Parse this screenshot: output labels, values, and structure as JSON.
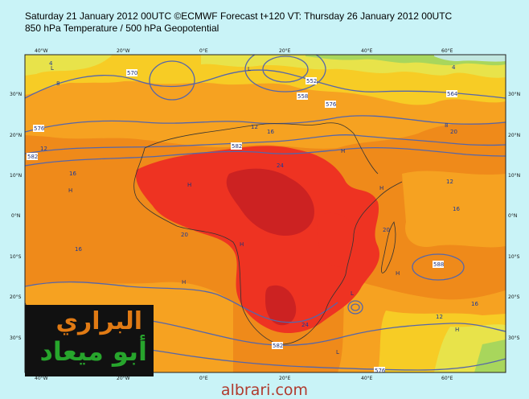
{
  "header": {
    "line1": "Saturday 21 January 2012 00UTC ©ECMWF Forecast t+120 VT: Thursday 26 January 2012 00UTC",
    "line2": "850 hPa Temperature / 500 hPa Geopotential"
  },
  "map": {
    "lon_top": [
      "40°W",
      "20°W",
      "0°E",
      "20°E",
      "40°E",
      "60°E"
    ],
    "lon_bottom": [
      "40°W",
      "20°W",
      "0°E",
      "20°E",
      "40°E",
      "60°E"
    ],
    "lat_left": [
      "30°N",
      "20°N",
      "10°N",
      "0°N",
      "10°S",
      "20°S",
      "30°S"
    ],
    "lat_right": [
      "30°N",
      "20°N",
      "10°N",
      "0°N",
      "10°S",
      "20°S",
      "30°S"
    ],
    "contour_labels": [
      "570",
      "576",
      "582",
      "564",
      "558",
      "552",
      "576",
      "582",
      "588",
      "582",
      "576"
    ],
    "temp_labels": [
      "4",
      "8",
      "12",
      "16",
      "20",
      "24",
      "16",
      "12",
      "16",
      "20",
      "24",
      "20",
      "16",
      "12",
      "4",
      "8",
      "12",
      "16"
    ],
    "pressure_marks": [
      "H",
      "H",
      "H",
      "H",
      "L",
      "L",
      "H",
      "L",
      "H",
      "H",
      "H",
      "L"
    ],
    "colors": {
      "hot": "#cc2222",
      "warm": "#ee3322",
      "orange": "#ef8a1a",
      "light_orange": "#f6a221",
      "yellow": "#f7cc25",
      "pale_yellow": "#e8e34a",
      "green": "#a8d65c",
      "contour": "#5566aa",
      "coast": "#333333"
    }
  },
  "logo": {
    "line1": "البراري",
    "line2": "أبو ميعاد"
  },
  "footer": "albrari.com"
}
